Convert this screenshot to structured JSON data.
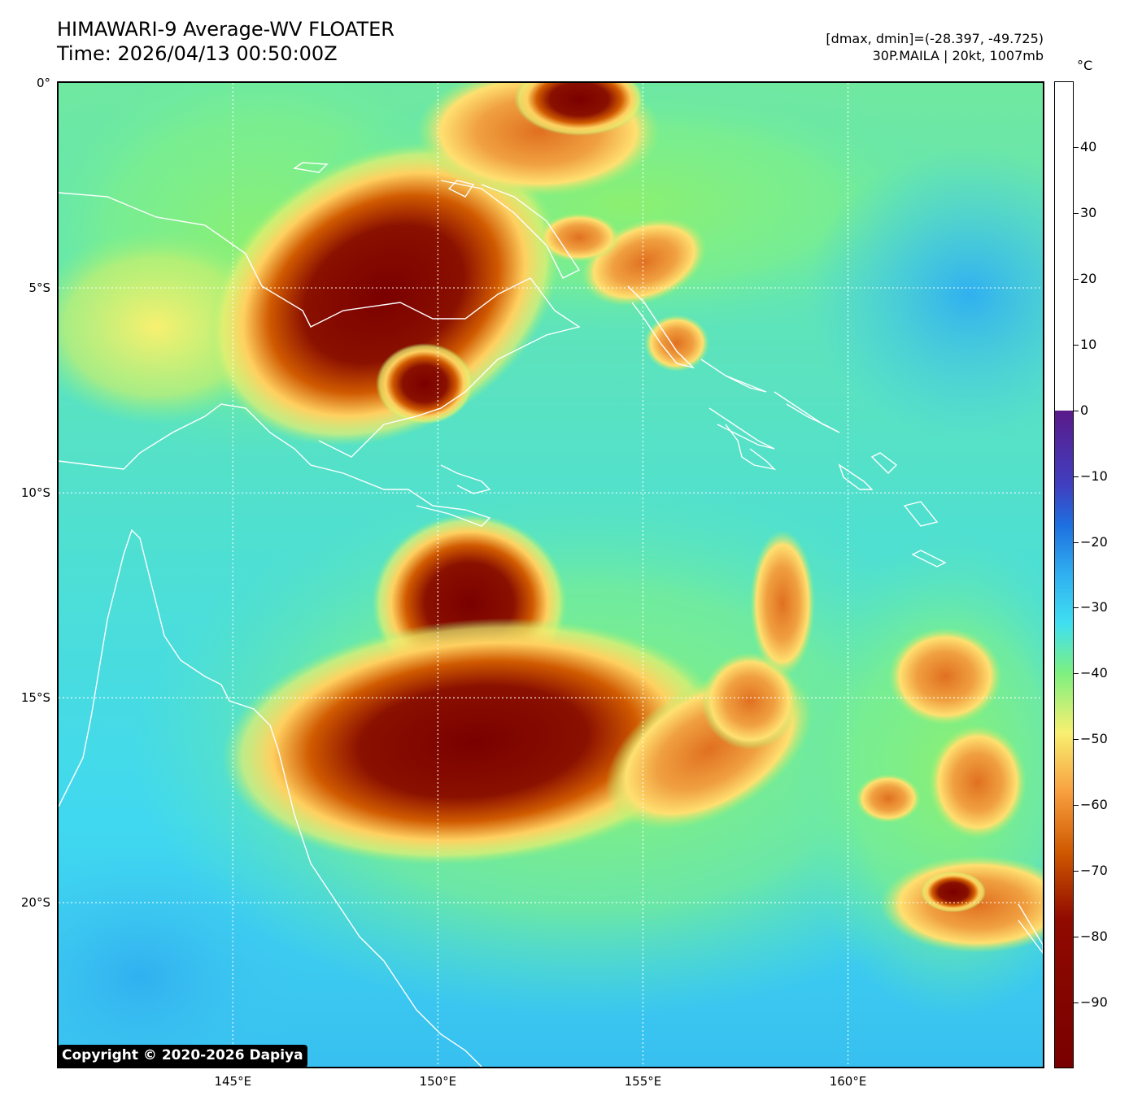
{
  "title": {
    "line1": "HIMAWARI-9 Average-WV FLOATER",
    "line2": "Time: 2026/04/13 00:50:00Z"
  },
  "info": {
    "line1": "[dmax, dmin]=(-28.397, -49.725)",
    "line2": "30P.MAILA | 20kt, 1007mb"
  },
  "map": {
    "lon_range": [
      140.75,
      164.75
    ],
    "lat_range": [
      0,
      -24
    ],
    "lat_labels": [
      {
        "value": 0,
        "label": "0°"
      },
      {
        "value": -5,
        "label": "5°S"
      },
      {
        "value": -10,
        "label": "10°S"
      },
      {
        "value": -15,
        "label": "15°S"
      },
      {
        "value": -20,
        "label": "20°S"
      }
    ],
    "lon_labels": [
      {
        "value": 145,
        "label": "145°E"
      },
      {
        "value": 150,
        "label": "150°E"
      },
      {
        "value": 155,
        "label": "155°E"
      },
      {
        "value": 160,
        "label": "160°E"
      }
    ],
    "gridlines": true,
    "coastline_color": "#ffffff",
    "background_color": "#3cd4f0"
  },
  "colorbar": {
    "unit": "°C",
    "range": [
      -100,
      50
    ],
    "ticks": [
      {
        "value": 40,
        "label": "40"
      },
      {
        "value": 30,
        "label": "30"
      },
      {
        "value": 20,
        "label": "20"
      },
      {
        "value": 10,
        "label": "10"
      },
      {
        "value": 0,
        "label": "0"
      },
      {
        "value": -10,
        "label": "−10"
      },
      {
        "value": -20,
        "label": "−20"
      },
      {
        "value": -30,
        "label": "−30"
      },
      {
        "value": -40,
        "label": "−40"
      },
      {
        "value": -50,
        "label": "−50"
      },
      {
        "value": -60,
        "label": "−60"
      },
      {
        "value": -70,
        "label": "−70"
      },
      {
        "value": -80,
        "label": "−80"
      },
      {
        "value": -90,
        "label": "−90"
      }
    ]
  },
  "copyright": "Copyright © 2020-2026 Dapiya"
}
